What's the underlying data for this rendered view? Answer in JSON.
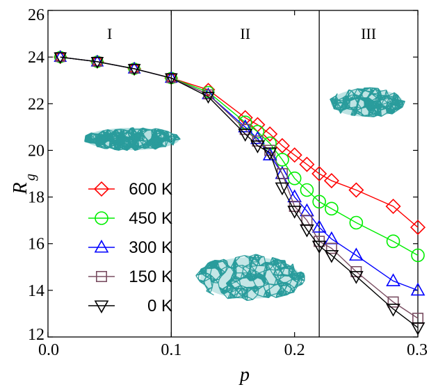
{
  "chart_data": {
    "type": "line",
    "xlabel": "p",
    "ylabel": "R",
    "ylabel_subscript": "g",
    "xlim": [
      0.0,
      0.3
    ],
    "ylim": [
      12,
      26
    ],
    "x_ticks": [
      0.0,
      0.1,
      0.2,
      0.3
    ],
    "x_tick_labels": [
      "0.0",
      "0.1",
      "0.2",
      "0.3"
    ],
    "y_ticks": [
      12,
      14,
      16,
      18,
      20,
      22,
      24,
      26
    ],
    "y_tick_labels": [
      "12",
      "14",
      "16",
      "18",
      "20",
      "22",
      "24",
      "26"
    ],
    "grid": false,
    "legend_position": "left",
    "regions": [
      {
        "label": "I",
        "x_center": 0.05
      },
      {
        "label": "II",
        "x_center": 0.16
      },
      {
        "label": "III",
        "x_center": 0.26
      }
    ],
    "boundaries": [
      0.1,
      0.22
    ],
    "series": [
      {
        "name": "600 K",
        "color": "#ff0000",
        "marker": "diamond",
        "x": [
          0.01,
          0.04,
          0.07,
          0.1,
          0.13,
          0.16,
          0.17,
          0.18,
          0.19,
          0.2,
          0.21,
          0.22,
          0.23,
          0.25,
          0.28,
          0.3
        ],
        "y": [
          24.0,
          23.8,
          23.5,
          23.1,
          22.6,
          21.4,
          21.1,
          20.7,
          20.2,
          19.8,
          19.4,
          19.0,
          18.7,
          18.3,
          17.6,
          16.7
        ]
      },
      {
        "name": "450 K",
        "color": "#00ee00",
        "marker": "circle",
        "x": [
          0.01,
          0.04,
          0.07,
          0.1,
          0.13,
          0.16,
          0.17,
          0.18,
          0.19,
          0.2,
          0.21,
          0.22,
          0.23,
          0.25,
          0.28,
          0.3
        ],
        "y": [
          24.0,
          23.8,
          23.5,
          23.1,
          22.5,
          21.2,
          20.8,
          20.3,
          19.6,
          18.8,
          18.3,
          17.8,
          17.5,
          16.9,
          16.1,
          15.5
        ]
      },
      {
        "name": "300 K",
        "color": "#0000ff",
        "marker": "triangle-up",
        "x": [
          0.01,
          0.04,
          0.07,
          0.1,
          0.13,
          0.16,
          0.17,
          0.18,
          0.19,
          0.2,
          0.21,
          0.22,
          0.23,
          0.25,
          0.28,
          0.3
        ],
        "y": [
          24.0,
          23.8,
          23.5,
          23.1,
          22.4,
          21.0,
          20.5,
          19.8,
          19.0,
          18.0,
          17.4,
          16.7,
          16.2,
          15.5,
          14.4,
          14.0
        ]
      },
      {
        "name": "150 K",
        "color": "#7a4e62",
        "marker": "square",
        "x": [
          0.01,
          0.04,
          0.07,
          0.1,
          0.13,
          0.16,
          0.17,
          0.18,
          0.19,
          0.2,
          0.21,
          0.22,
          0.23,
          0.25,
          0.28,
          0.3
        ],
        "y": [
          24.0,
          23.8,
          23.5,
          23.1,
          22.4,
          20.9,
          20.4,
          20.0,
          19.0,
          17.6,
          17.0,
          16.1,
          15.8,
          14.8,
          13.5,
          12.8
        ]
      },
      {
        "name": "0 K",
        "color": "#000000",
        "marker": "triangle-down",
        "x": [
          0.01,
          0.04,
          0.07,
          0.1,
          0.13,
          0.16,
          0.17,
          0.18,
          0.19,
          0.2,
          0.21,
          0.22,
          0.23,
          0.25,
          0.28,
          0.3
        ],
        "y": [
          24.0,
          23.8,
          23.5,
          23.1,
          22.3,
          20.7,
          20.2,
          19.9,
          18.4,
          17.4,
          16.6,
          15.9,
          15.5,
          14.6,
          13.2,
          12.4
        ]
      }
    ]
  }
}
